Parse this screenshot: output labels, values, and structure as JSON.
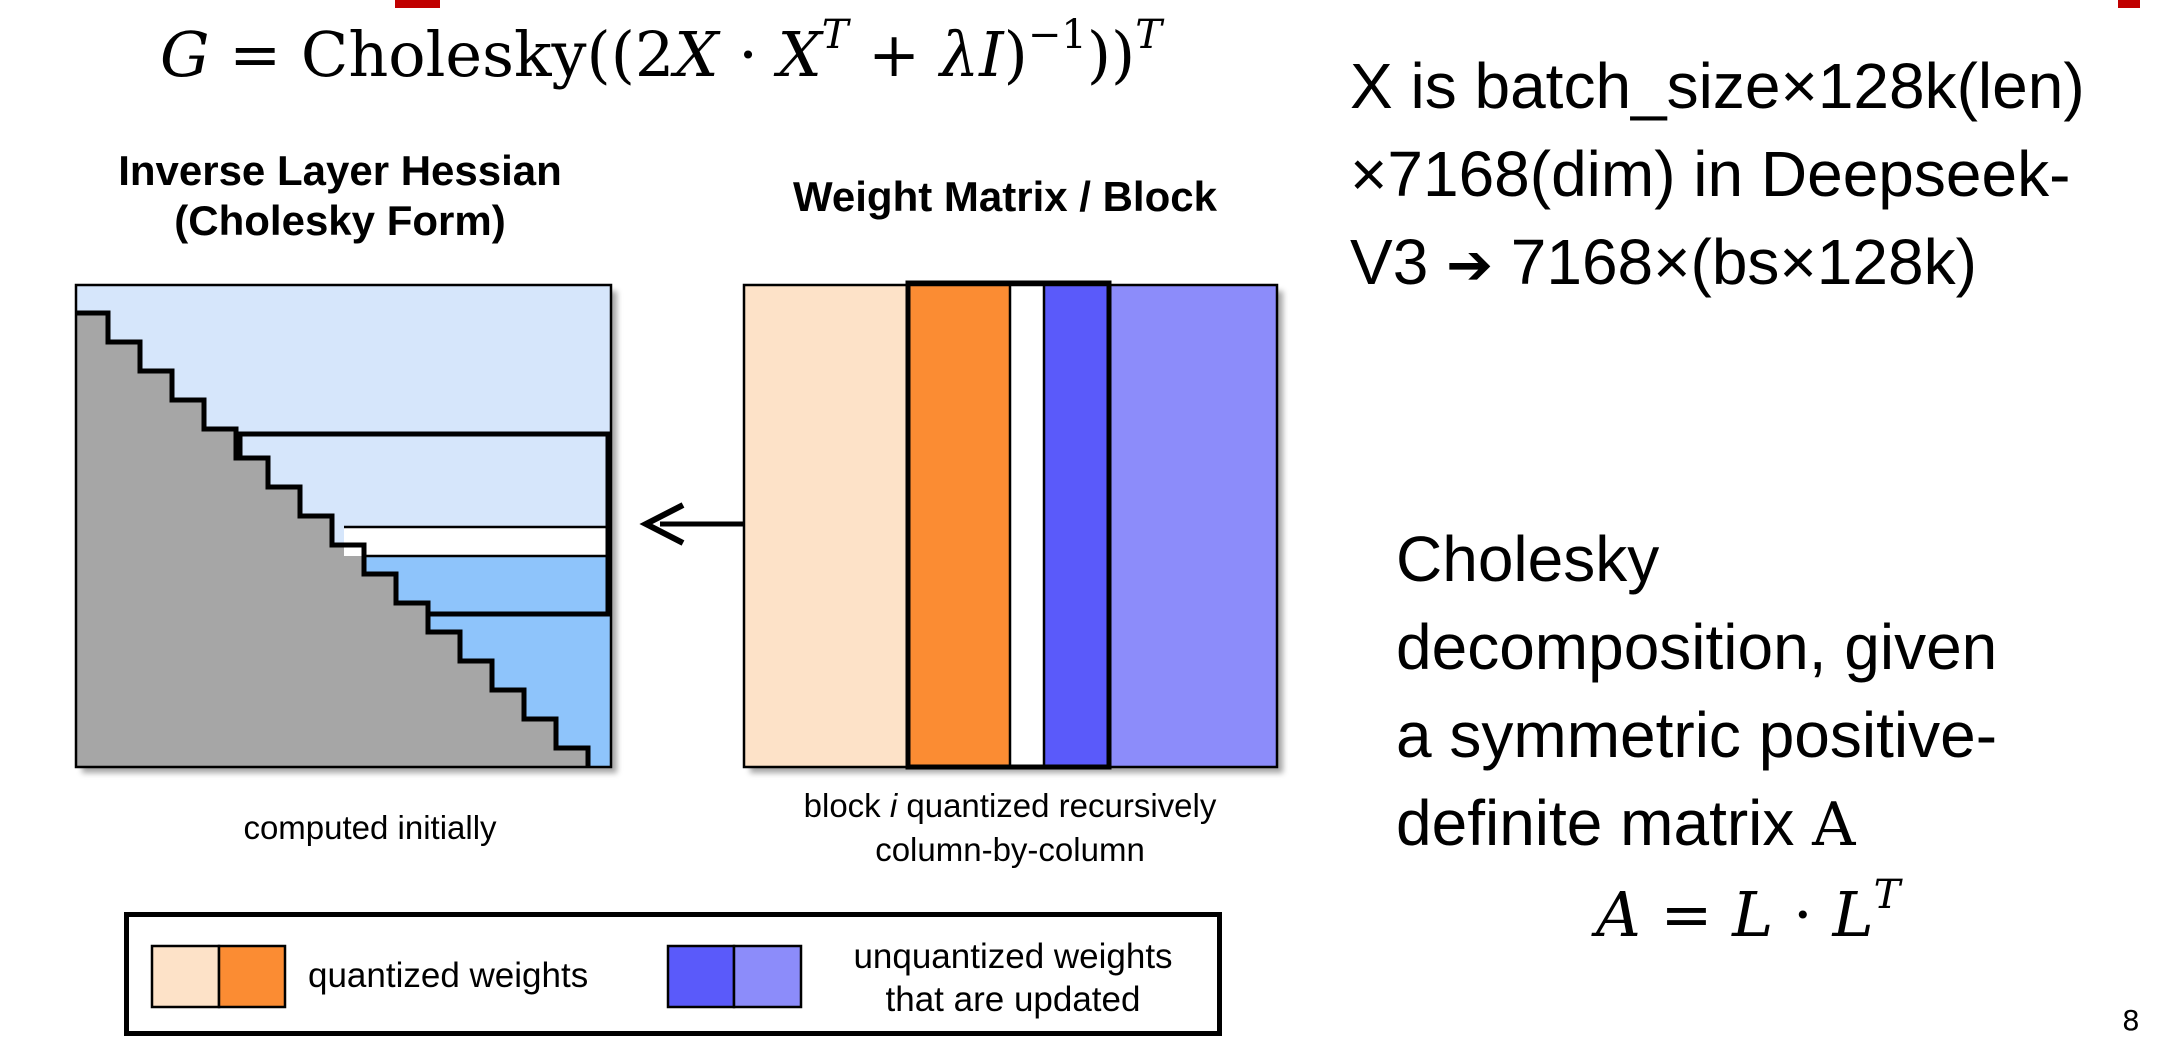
{
  "formula": {
    "lhs": "G",
    "eq": " = ",
    "func": "Cholesky",
    "open": "((2",
    "x1": "X",
    "dot": " · ",
    "x2": "X",
    "sup_t1": "T",
    "plus": " + ",
    "lambda": "λ",
    "ident": "I",
    "close1": ")",
    "sup_inv": "−1",
    "close2": "))",
    "sup_t2": "T"
  },
  "diagram": {
    "hessian_title_line1": "Inverse Layer Hessian",
    "hessian_title_line2": "(Cholesky Form)",
    "weight_title": "Weight Matrix / Block",
    "caption_left": "computed initially",
    "caption_right_pre": "block ",
    "caption_right_i": "i",
    "caption_right_post": " quantized recursively",
    "caption_right_line2": "column-by-column",
    "colors": {
      "gray": "#a6a6a6",
      "light_blue": "#d6e6fb",
      "mid_blue": "#8ec4fb",
      "peach": "#fde2c8",
      "orange": "#fb8c33",
      "blue": "#5a5afa",
      "lavender": "#8c8cfa"
    }
  },
  "legend": {
    "quantized_label": "quantized weights",
    "unquantized_line1": "unquantized weights",
    "unquantized_line2": "that are updated"
  },
  "right_note": {
    "line1": "X is batch_size×128k(len)",
    "line2": "×7168(dim) in Deepseek-",
    "line3_pre": "V3 ",
    "arrow": "➔",
    "line3_post": " 7168×(bs×128k)"
  },
  "cholesky_note": {
    "line1": "Cholesky",
    "line2": "decomposition, given",
    "line3": "a symmetric positive-",
    "line4_pre": "definite matrix ",
    "line4_var": "A",
    "eq_lhs": "A",
    "eq_mid": " = ",
    "eq_l1": "L",
    "eq_dot": " · ",
    "eq_l2": "L",
    "eq_sup": "T"
  },
  "page_number": "8"
}
